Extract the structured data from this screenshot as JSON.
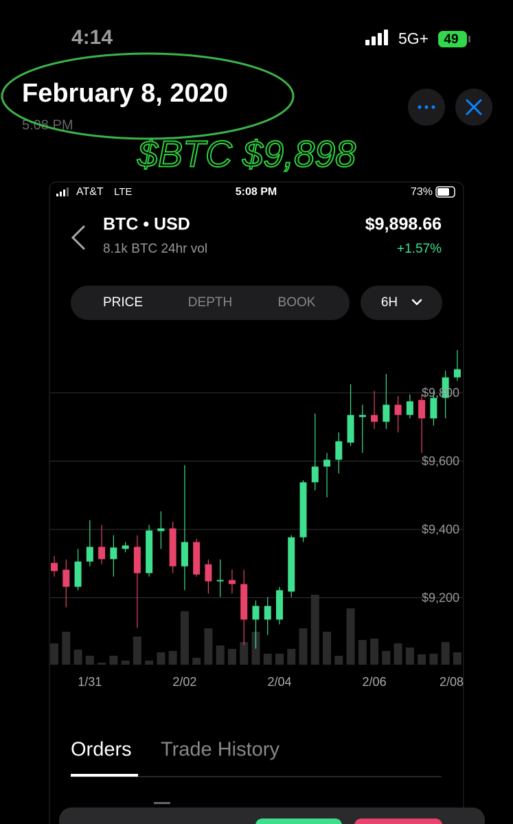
{
  "status_bar": {
    "time": "4:14",
    "network": "5G+",
    "battery": "49"
  },
  "header": {
    "title": "February 8, 2020",
    "time": "5:08 PM"
  },
  "annotation": "$BTC $9,898",
  "screenshot": {
    "status_bar": {
      "carrier": "AT&T",
      "network": "LTE",
      "time": "5:08 PM",
      "battery": "73%"
    },
    "pair": "BTC • USD",
    "volume_text": "8.1k BTC 24hr vol",
    "price": "$9,898.66",
    "change": "+1.57%",
    "tabs": [
      "PRICE",
      "DEPTH",
      "BOOK"
    ],
    "interval": "6H",
    "bottom_tabs": [
      "Orders",
      "Trade History"
    ]
  },
  "chart_data": {
    "type": "candlestick",
    "up_color": "#3ee08f",
    "down_color": "#e8436a",
    "volume_color": "#2a2a2a",
    "grid": true,
    "x": [
      0,
      1,
      2,
      3,
      4,
      5,
      6,
      7,
      8,
      9,
      10,
      11,
      12,
      13,
      14,
      15,
      16,
      17,
      18,
      19,
      20,
      21,
      22,
      23,
      24,
      25,
      26,
      27,
      28,
      29,
      30,
      31,
      32,
      33,
      34
    ],
    "open": [
      9302,
      9282,
      9232,
      9306,
      9349,
      9313,
      9343,
      9349,
      9272,
      9395,
      9403,
      9292,
      9363,
      9298,
      9248,
      9252,
      9240,
      9136,
      9136,
      9136,
      9218,
      9377,
      9538,
      9584,
      9604,
      9654,
      9729,
      9735,
      9715,
      9765,
      9735,
      9779,
      9725,
      9785,
      9845
    ],
    "close": [
      9278,
      9232,
      9306,
      9349,
      9313,
      9347,
      9353,
      9272,
      9397,
      9403,
      9292,
      9363,
      9268,
      9248,
      9252,
      9240,
      9136,
      9176,
      9176,
      9222,
      9377,
      9538,
      9584,
      9604,
      9658,
      9735,
      9735,
      9715,
      9765,
      9735,
      9775,
      9725,
      9785,
      9845,
      9869
    ],
    "high": [
      9322,
      9312,
      9343,
      9427,
      9413,
      9383,
      9363,
      9383,
      9413,
      9453,
      9423,
      9588,
      9373,
      9312,
      9312,
      9282,
      9282,
      9192,
      9202,
      9232,
      9383,
      9544,
      9739,
      9624,
      9684,
      9825,
      9765,
      9805,
      9855,
      9791,
      9795,
      9795,
      9805,
      9865,
      9925
    ],
    "low": [
      9262,
      9172,
      9222,
      9292,
      9298,
      9262,
      9333,
      9112,
      9262,
      9343,
      9272,
      9222,
      9262,
      9212,
      9202,
      9212,
      9061,
      9051,
      9091,
      9122,
      9202,
      9363,
      9514,
      9494,
      9564,
      9644,
      9624,
      9694,
      9694,
      9684,
      9725,
      9624,
      9704,
      9725,
      9835
    ],
    "volume": [
      31,
      48,
      22,
      13,
      3,
      13,
      6,
      41,
      6,
      18,
      20,
      78,
      10,
      53,
      28,
      23,
      33,
      48,
      16,
      16,
      23,
      53,
      102,
      48,
      13,
      82,
      36,
      38,
      20,
      31,
      25,
      15,
      16,
      33,
      18
    ],
    "xlim": [
      -0.5,
      35.5
    ],
    "xticks": [
      {
        "value": 3,
        "label": "1/31"
      },
      {
        "value": 11,
        "label": "2/02"
      },
      {
        "value": 19,
        "label": "2/04"
      },
      {
        "value": 27,
        "label": "2/06"
      },
      {
        "value": 35,
        "label": "2/08"
      }
    ],
    "ylim": [
      9000,
      9960
    ],
    "yticks": [
      {
        "value": 9200,
        "label": "$9,200"
      },
      {
        "value": 9400,
        "label": "$9,400"
      },
      {
        "value": 9600,
        "label": "$9,600"
      },
      {
        "value": 9800,
        "label": "$9,800"
      }
    ]
  }
}
